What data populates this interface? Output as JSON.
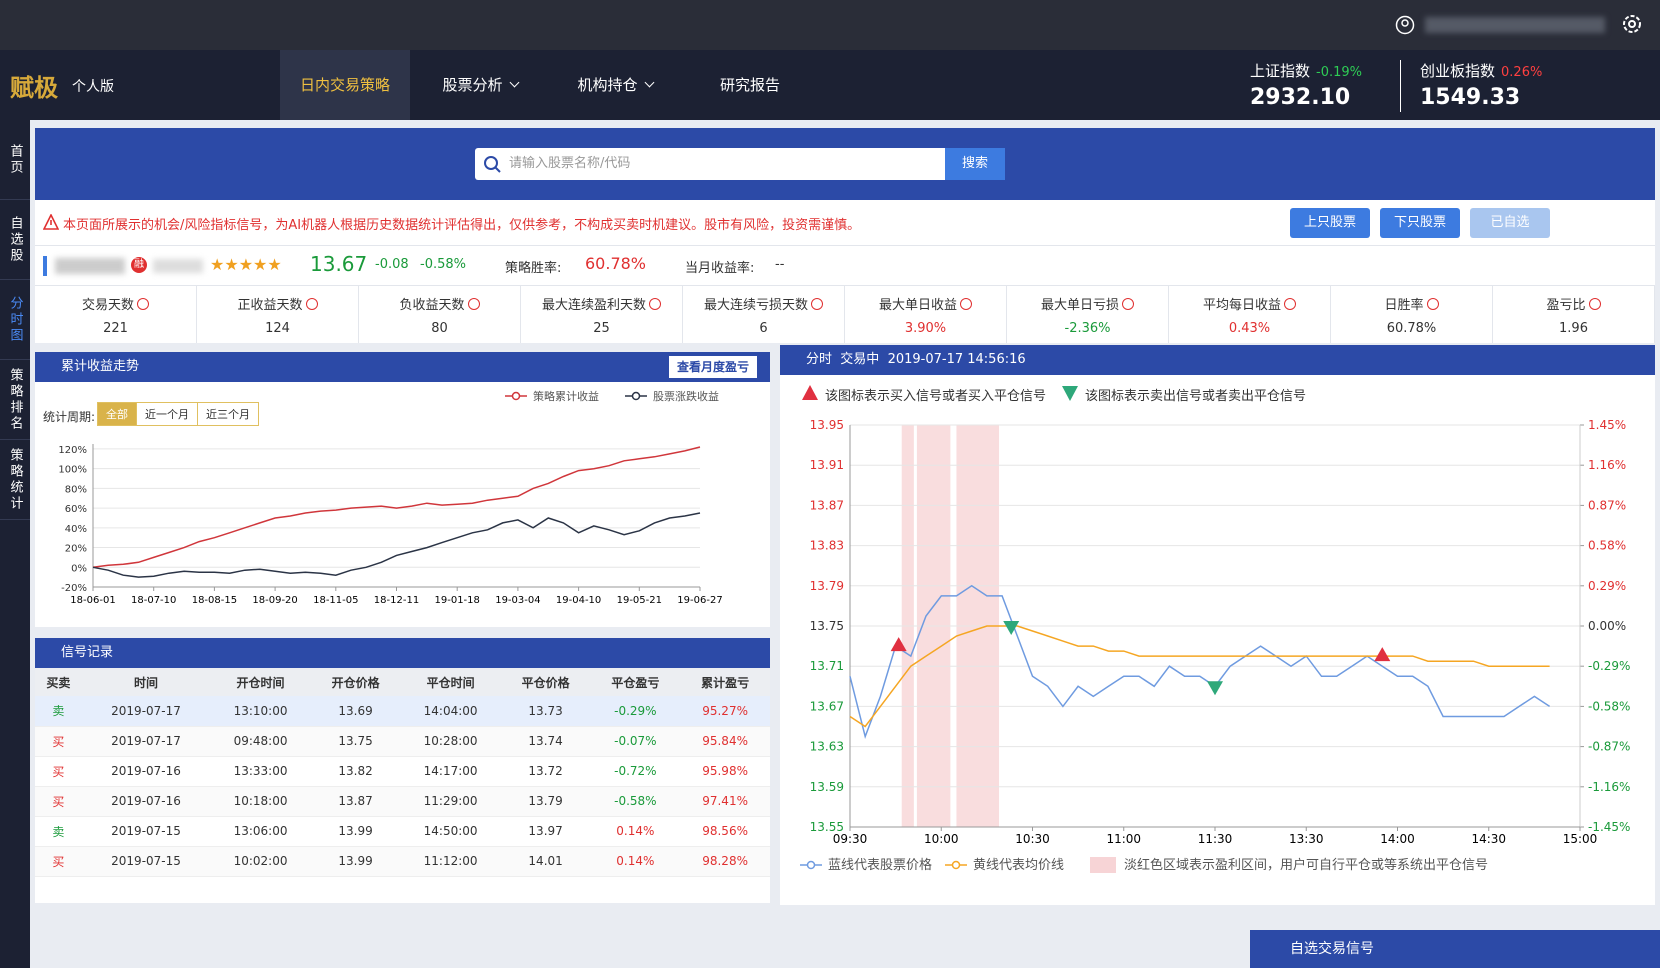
{
  "nav": {
    "logo": "赋极",
    "edition": "个人版",
    "items": [
      "日内交易策略",
      "股票分析",
      "机构持仓",
      "研究报告"
    ],
    "dropdown": [
      false,
      true,
      true,
      false
    ],
    "active": 0
  },
  "indices": [
    {
      "name": "上证指数",
      "change": "-0.19%",
      "value": "2932.10"
    },
    {
      "name": "创业板指数",
      "change": "0.26%",
      "value": "1549.33"
    }
  ],
  "sidebar": {
    "items": [
      "首页",
      "自选股",
      "分时图",
      "策略排名",
      "策略统计"
    ],
    "active": 2
  },
  "search": {
    "placeholder": "请输入股票名称/代码",
    "button": "搜索"
  },
  "warning": "本页面所展示的机会/风险指标信号，为AI机器人根据历史数据统计评估得出，仅供参考，不构成买卖时机建议。股市有风险，投资需谨慎。",
  "buttons": [
    "上只股票",
    "下只股票",
    "已自选"
  ],
  "stock": {
    "badge": "融",
    "rating": "★★★★★",
    "price": "13.67",
    "change": "-0.08",
    "change_pct": "-0.58%",
    "win_rate_label": "策略胜率:",
    "win_rate": "60.78%",
    "month_return_label": "当月收益率:",
    "month_return": "--"
  },
  "stats": [
    {
      "label": "交易天数",
      "value": "221",
      "color": "#333"
    },
    {
      "label": "正收益天数",
      "value": "124",
      "color": "#333"
    },
    {
      "label": "负收益天数",
      "value": "80",
      "color": "#333"
    },
    {
      "label": "最大连续盈利天数",
      "value": "25",
      "color": "#333"
    },
    {
      "label": "最大连续亏损天数",
      "value": "6",
      "color": "#333"
    },
    {
      "label": "最大单日收益",
      "value": "3.90%",
      "color": "#e03030"
    },
    {
      "label": "最大单日亏损",
      "value": "-2.36%",
      "color": "#1a9a3a"
    },
    {
      "label": "平均每日收益",
      "value": "0.43%",
      "color": "#e03030"
    },
    {
      "label": "日胜率",
      "value": "60.78%",
      "color": "#333"
    },
    {
      "label": "盈亏比",
      "value": "1.96",
      "color": "#333"
    }
  ],
  "cumulative": {
    "title": "累计收益走势",
    "button": "查看月度盈亏",
    "period_label": "统计周期:",
    "periods": [
      "全部",
      "近一个月",
      "近三个月"
    ],
    "active_period": 0
  },
  "signals_table": {
    "title": "信号记录",
    "header": [
      "买卖",
      "时间",
      "开仓时间",
      "开仓价格",
      "平仓时间",
      "平仓价格",
      "平仓盈亏",
      "累计盈亏"
    ],
    "rows": [
      {
        "side": "sell",
        "cells": [
          "卖",
          "2019-07-17",
          "13:10:00",
          "13.69",
          "14:04:00",
          "13.73",
          "-0.29%",
          "95.27%"
        ]
      },
      {
        "side": "buy",
        "cells": [
          "买",
          "2019-07-17",
          "09:48:00",
          "13.75",
          "10:28:00",
          "13.74",
          "-0.07%",
          "95.84%"
        ]
      },
      {
        "side": "buy",
        "cells": [
          "买",
          "2019-07-16",
          "13:33:00",
          "13.82",
          "14:17:00",
          "13.72",
          "-0.72%",
          "95.98%"
        ]
      },
      {
        "side": "buy",
        "cells": [
          "买",
          "2019-07-16",
          "10:18:00",
          "13.87",
          "11:29:00",
          "13.79",
          "-0.58%",
          "97.41%"
        ]
      },
      {
        "side": "sell",
        "cells": [
          "卖",
          "2019-07-15",
          "13:06:00",
          "13.99",
          "14:50:00",
          "13.97",
          "0.14%",
          "98.56%"
        ]
      },
      {
        "side": "buy",
        "cells": [
          "买",
          "2019-07-15",
          "10:02:00",
          "13.99",
          "11:12:00",
          "14.01",
          "0.14%",
          "98.28%"
        ]
      }
    ]
  },
  "intraday": {
    "title": "分时",
    "status": "交易中",
    "timestamp": "2019-07-17 14:56:16",
    "buy_note": "该图标表示买入信号或者买入平仓信号",
    "sell_note": "该图标表示卖出信号或者卖出平仓信号"
  },
  "footer_panel": "自选交易信号",
  "chart_data": [
    {
      "type": "line",
      "categories": [
        "18-06-01",
        null,
        null,
        null,
        "18-07-10",
        null,
        null,
        null,
        "18-08-15",
        null,
        null,
        null,
        "18-09-20",
        null,
        null,
        null,
        "18-11-05",
        null,
        null,
        null,
        "18-12-11",
        null,
        null,
        null,
        "19-01-18",
        null,
        null,
        null,
        "19-03-04",
        null,
        null,
        null,
        "19-04-10",
        null,
        null,
        null,
        "19-05-21",
        null,
        null,
        null,
        "19-06-27"
      ],
      "series": [
        {
          "name": "策略累计收益",
          "color": "#d0363b",
          "values": [
            0,
            2,
            3,
            5,
            10,
            15,
            20,
            26,
            30,
            35,
            40,
            45,
            50,
            52,
            55,
            57,
            58,
            60,
            61,
            62,
            60,
            62,
            65,
            63,
            64,
            65,
            68,
            70,
            72,
            80,
            85,
            92,
            98,
            100,
            103,
            108,
            110,
            112,
            115,
            118,
            122
          ]
        },
        {
          "name": "股票涨跌收益",
          "color": "#2b3446",
          "values": [
            0,
            -3,
            -8,
            -10,
            -9,
            -6,
            -4,
            -5,
            -5,
            -6,
            -3,
            -2,
            -4,
            -6,
            -5,
            -6,
            -8,
            -3,
            0,
            5,
            12,
            16,
            20,
            25,
            30,
            35,
            38,
            45,
            48,
            40,
            50,
            45,
            35,
            42,
            38,
            33,
            37,
            45,
            50,
            52,
            55
          ]
        }
      ],
      "ylim": [
        -20,
        125
      ],
      "yticks": [
        {
          "value": -20,
          "label": "-20%"
        },
        {
          "value": 0,
          "label": "0%"
        },
        {
          "value": 20,
          "label": "20%"
        },
        {
          "value": 40,
          "label": "40%"
        },
        {
          "value": 60,
          "label": "60%"
        },
        {
          "value": 80,
          "label": "80%"
        },
        {
          "value": 100,
          "label": "100%"
        },
        {
          "value": 120,
          "label": "120%"
        }
      ],
      "grid": true
    },
    {
      "type": "line",
      "categories": [
        "09:30",
        null,
        null,
        null,
        null,
        null,
        "10:00",
        null,
        null,
        null,
        null,
        null,
        "10:30",
        null,
        null,
        null,
        null,
        null,
        "11:00",
        null,
        null,
        null,
        null,
        null,
        "11:30",
        null,
        null,
        null,
        null,
        null,
        "13:30",
        null,
        null,
        null,
        null,
        null,
        "14:00",
        null,
        null,
        null,
        null,
        null,
        "14:30",
        null,
        null,
        null,
        null,
        null,
        "15:00"
      ],
      "series": [
        {
          "name": "蓝线代表股票价格",
          "color": "#6f9be0",
          "values": [
            13.7,
            13.64,
            13.68,
            13.73,
            13.72,
            13.76,
            13.78,
            13.78,
            13.79,
            13.78,
            13.78,
            13.74,
            13.7,
            13.69,
            13.67,
            13.69,
            13.68,
            13.69,
            13.7,
            13.7,
            13.69,
            13.71,
            13.7,
            13.7,
            13.69,
            13.71,
            13.72,
            13.73,
            13.72,
            13.71,
            13.72,
            13.7,
            13.7,
            13.71,
            13.72,
            13.71,
            13.7,
            13.7,
            13.69,
            13.66,
            13.66,
            13.66,
            13.66,
            13.66,
            13.67,
            13.68,
            13.67,
            null,
            null
          ]
        },
        {
          "name": "黄线代表均价线",
          "color": "#f5a623",
          "values": [
            13.66,
            13.65,
            13.67,
            13.69,
            13.71,
            13.72,
            13.73,
            13.74,
            13.745,
            13.75,
            13.75,
            13.75,
            13.745,
            13.74,
            13.735,
            13.73,
            13.73,
            13.725,
            13.725,
            13.72,
            13.72,
            13.72,
            13.72,
            13.72,
            13.72,
            13.72,
            13.72,
            13.72,
            13.72,
            13.72,
            13.72,
            13.72,
            13.72,
            13.72,
            13.72,
            13.72,
            13.72,
            13.72,
            13.715,
            13.715,
            13.715,
            13.715,
            13.71,
            13.71,
            13.71,
            13.71,
            13.71,
            null,
            null
          ]
        }
      ],
      "ylim": [
        13.55,
        13.95
      ],
      "yticks": [
        13.55,
        13.59,
        13.63,
        13.67,
        13.71,
        13.75,
        13.79,
        13.83,
        13.87,
        13.91,
        13.95
      ],
      "y2lim": [
        -1.45,
        1.45
      ],
      "y2ticks": [
        {
          "value": -1.45,
          "label": "-1.45%"
        },
        {
          "value": -1.16,
          "label": "-1.16%"
        },
        {
          "value": -0.87,
          "label": "-0.87%"
        },
        {
          "value": -0.58,
          "label": "-0.58%"
        },
        {
          "value": -0.29,
          "label": "-0.29%"
        },
        {
          "value": 0,
          "label": "0.00%"
        },
        {
          "value": 0.29,
          "label": "0.29%"
        },
        {
          "value": 0.58,
          "label": "0.58%"
        },
        {
          "value": 0.87,
          "label": "0.87%"
        },
        {
          "value": 1.16,
          "label": "1.16%"
        },
        {
          "value": 1.45,
          "label": "1.45%"
        }
      ],
      "grid": true,
      "shaded": {
        "name": "淡红色区域表示盈利区间，用户可自行平仓或等系统出平仓信号",
        "color": "#f7d4d6",
        "ranges": [
          [
            "09:47",
            "09:51"
          ],
          [
            "09:52",
            "10:03"
          ],
          [
            "10:05",
            "10:19"
          ]
        ]
      },
      "signals": [
        {
          "side": "buy",
          "time": "09:46",
          "price": 13.73
        },
        {
          "side": "sell",
          "time": "10:23",
          "price": 13.75
        },
        {
          "side": "sell",
          "time": "11:30",
          "price": 13.69
        },
        {
          "side": "buy",
          "time": "13:55",
          "price": 13.72
        }
      ]
    }
  ]
}
